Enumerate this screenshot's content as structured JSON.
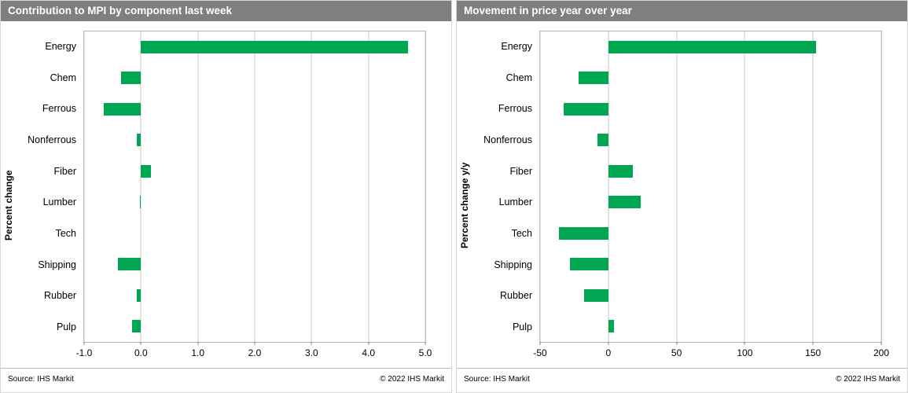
{
  "accent_color": "#00a651",
  "chart_data": [
    {
      "type": "bar",
      "orientation": "horizontal",
      "title": "Contribution to MPI by component last week",
      "ylabel": "Percent change",
      "xlabel": "",
      "categories": [
        "Energy",
        "Chem",
        "Ferrous",
        "Nonferrous",
        "Fiber",
        "Lumber",
        "Tech",
        "Shipping",
        "Rubber",
        "Pulp"
      ],
      "values": [
        4.7,
        -0.35,
        -0.65,
        -0.08,
        0.18,
        -0.02,
        0,
        -0.4,
        -0.08,
        -0.15
      ],
      "xlim": [
        -1.0,
        5.0
      ],
      "xticks": [
        -1.0,
        0.0,
        1.0,
        2.0,
        3.0,
        4.0,
        5.0
      ],
      "xtick_labels": [
        "-1.0",
        "0.0",
        "1.0",
        "2.0",
        "3.0",
        "4.0",
        "5.0"
      ],
      "grid": true,
      "legend": "none",
      "bar_color": "#00a651",
      "source": "Source:  IHS Markit",
      "copyright": "© 2022  IHS Markit"
    },
    {
      "type": "bar",
      "orientation": "horizontal",
      "title": "Movement in price year over year",
      "ylabel": "Percent change y/y",
      "xlabel": "",
      "categories": [
        "Energy",
        "Chem",
        "Ferrous",
        "Nonferrous",
        "Fiber",
        "Lumber",
        "Tech",
        "Shipping",
        "Rubber",
        "Pulp"
      ],
      "values": [
        152,
        -22,
        -33,
        -8,
        18,
        24,
        -36,
        -28,
        -18,
        4
      ],
      "xlim": [
        -50,
        200
      ],
      "xticks": [
        -50,
        0,
        50,
        100,
        150,
        200
      ],
      "xtick_labels": [
        "-50",
        "0",
        "50",
        "100",
        "150",
        "200"
      ],
      "grid": true,
      "legend": "none",
      "bar_color": "#00a651",
      "source": "Source:  IHS Markit",
      "copyright": "© 2022  IHS Markit"
    }
  ]
}
